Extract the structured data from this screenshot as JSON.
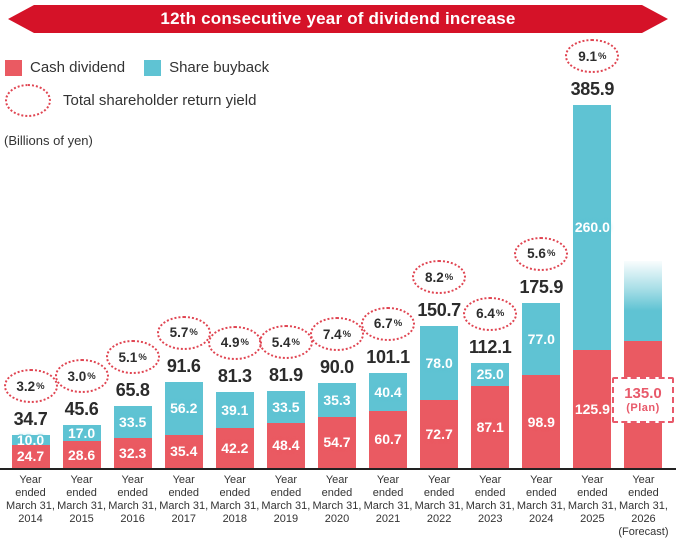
{
  "banner": {
    "title": "12th consecutive year of dividend increase"
  },
  "legend": {
    "cash_label": "Cash dividend",
    "buyback_label": "Share buyback",
    "yield_label": "Total shareholder return yield"
  },
  "unit_label": "(Billions of yen)",
  "colors": {
    "banner_red": "#d51228",
    "cash_dividend": "#ea5a62",
    "share_buyback": "#5fc3d3",
    "yield_ring": "#e04552",
    "plan_accent": "#e8596a",
    "text": "#333333"
  },
  "chart_data": {
    "type": "bar",
    "stacked": true,
    "title": "12th consecutive year of dividend increase",
    "ylabel": "Billions of yen",
    "grid": false,
    "legend_position": "top-left",
    "x_tick_prefix_lines": [
      "Year",
      "ended",
      "March 31,"
    ],
    "categories": [
      "2014",
      "2015",
      "2016",
      "2017",
      "2018",
      "2019",
      "2020",
      "2021",
      "2022",
      "2023",
      "2024",
      "2025",
      "2026"
    ],
    "forecast_note": "(Forecast)",
    "series": [
      {
        "name": "Cash dividend",
        "values": [
          24.7,
          28.6,
          32.3,
          35.4,
          42.2,
          48.4,
          54.7,
          60.7,
          72.7,
          87.1,
          98.9,
          125.9,
          135.0
        ]
      },
      {
        "name": "Share buyback",
        "values": [
          10.0,
          17.0,
          33.5,
          56.2,
          39.1,
          33.5,
          35.3,
          40.4,
          78.0,
          25.0,
          77.0,
          260.0,
          null
        ]
      }
    ],
    "totals": [
      34.7,
      45.6,
      65.8,
      91.6,
      81.3,
      81.9,
      90.0,
      101.1,
      150.7,
      112.1,
      175.9,
      385.9,
      null
    ],
    "yield_percent": [
      3.2,
      3.0,
      5.1,
      5.7,
      4.9,
      5.4,
      7.4,
      6.7,
      8.2,
      6.4,
      5.6,
      9.1,
      null
    ],
    "plan": {
      "column": 12,
      "value": "135.0",
      "note": "(Plan)",
      "buyback_undetermined": true
    }
  }
}
